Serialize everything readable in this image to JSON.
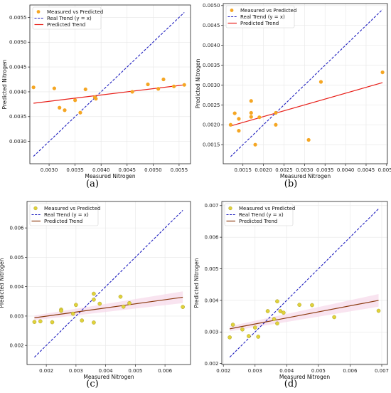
{
  "chart_data": [
    {
      "type": "scatter",
      "panel": "(a)",
      "xlabel": "Measured Nitrogen",
      "ylabel": "Predicted Nitrogen",
      "xlim": [
        0.00263,
        0.00572
      ],
      "ylim": [
        0.00255,
        0.00575
      ],
      "xticks": [
        "0.0030",
        "0.0035",
        "0.0040",
        "0.0045",
        "0.0050",
        "0.0055"
      ],
      "yticks": [
        "0.0030",
        "0.0035",
        "0.0040",
        "0.0045",
        "0.0050",
        "0.0055"
      ],
      "legend": [
        "Measured vs Predicted",
        "Real Trend (y = x)",
        "Predicted Trend"
      ],
      "legend_placement": "top-left",
      "grid": true,
      "points": [
        [
          0.0027,
          0.00409
        ],
        [
          0.0031,
          0.00407
        ],
        [
          0.0032,
          0.00368
        ],
        [
          0.0033,
          0.00363
        ],
        [
          0.0035,
          0.00383
        ],
        [
          0.0036,
          0.00358
        ],
        [
          0.0037,
          0.00405
        ],
        [
          0.00388,
          0.00389
        ],
        [
          0.0039,
          0.00386
        ],
        [
          0.0046,
          0.004
        ],
        [
          0.0049,
          0.00415
        ],
        [
          0.0051,
          0.00406
        ],
        [
          0.0052,
          0.00425
        ],
        [
          0.0054,
          0.00411
        ],
        [
          0.0056,
          0.00414
        ]
      ],
      "real_trend": [
        [
          0.0027,
          0.0027
        ],
        [
          0.0056,
          0.0056
        ]
      ],
      "predicted_trend": [
        [
          0.0027,
          0.00377
        ],
        [
          0.0056,
          0.00414
        ]
      ],
      "colors": {
        "points": "#f5a623",
        "real": "#1f1fbf",
        "pred": "#e8201a"
      },
      "point_edge": false,
      "caption": "(a)"
    },
    {
      "type": "scatter",
      "panel": "(b)",
      "xlabel": "Measured Nitrogen",
      "ylabel": "Predicted Nitrogen",
      "xlim": [
        0.00102,
        0.00502
      ],
      "ylim": [
        0.00102,
        0.00505
      ],
      "xticks": [
        "0.0015",
        "0.0020",
        "0.0025",
        "0.0030",
        "0.0035",
        "0.0040",
        "0.0045",
        "0.0050"
      ],
      "yticks": [
        "0.0015",
        "0.0020",
        "0.0025",
        "0.0030",
        "0.0035",
        "0.0040",
        "0.0045",
        "0.0050"
      ],
      "legend": [
        "Measured vs Predicted",
        "Real Trend (y = x)",
        "Predicted Trend"
      ],
      "legend_placement": "top-left",
      "grid": true,
      "points": [
        [
          0.0012,
          0.002
        ],
        [
          0.0013,
          0.00229
        ],
        [
          0.0014,
          0.00215
        ],
        [
          0.0014,
          0.00185
        ],
        [
          0.0017,
          0.0026
        ],
        [
          0.0017,
          0.0023
        ],
        [
          0.0017,
          0.0022
        ],
        [
          0.0018,
          0.0015
        ],
        [
          0.0019,
          0.00219
        ],
        [
          0.0023,
          0.0023
        ],
        [
          0.0023,
          0.002
        ],
        [
          0.0031,
          0.00162
        ],
        [
          0.0034,
          0.00308
        ],
        [
          0.0049,
          0.00332
        ]
      ],
      "real_trend": [
        [
          0.0012,
          0.0012
        ],
        [
          0.0049,
          0.0049
        ]
      ],
      "predicted_trend": [
        [
          0.0012,
          0.00197
        ],
        [
          0.0049,
          0.00306
        ]
      ],
      "colors": {
        "points": "#f5a623",
        "real": "#1f1fbf",
        "pred": "#e8201a"
      },
      "point_edge": false,
      "caption": "(b)"
    },
    {
      "type": "scatter",
      "panel": "(c)",
      "xlabel": "Measured Nitrogen",
      "ylabel": "Predicted Nitrogen",
      "xlim": [
        0.00135,
        0.00686
      ],
      "ylim": [
        0.00135,
        0.0069
      ],
      "xticks": [
        "0.002",
        "0.003",
        "0.004",
        "0.005",
        "0.006"
      ],
      "yticks": [
        "0.002",
        "0.003",
        "0.004",
        "0.005",
        "0.006"
      ],
      "legend": [
        "Measured vs Predicted",
        "Real Trend (y = x)",
        "Predicted Trend"
      ],
      "legend_placement": "top-left",
      "grid": true,
      "points": [
        [
          0.0016,
          0.0028
        ],
        [
          0.0018,
          0.00282
        ],
        [
          0.0022,
          0.00279
        ],
        [
          0.0025,
          0.00322
        ],
        [
          0.0025,
          0.00318
        ],
        [
          0.0029,
          0.00308
        ],
        [
          0.003,
          0.00338
        ],
        [
          0.0032,
          0.00285
        ],
        [
          0.0036,
          0.00376
        ],
        [
          0.0036,
          0.00356
        ],
        [
          0.0036,
          0.00278
        ],
        [
          0.0038,
          0.00342
        ],
        [
          0.0045,
          0.00366
        ],
        [
          0.0046,
          0.00332
        ],
        [
          0.0048,
          0.00344
        ],
        [
          0.0066,
          0.00331
        ]
      ],
      "real_trend": [
        [
          0.0016,
          0.0016
        ],
        [
          0.0066,
          0.0066
        ]
      ],
      "predicted_trend": [
        [
          0.0016,
          0.00294
        ],
        [
          0.0066,
          0.00364
        ]
      ],
      "band_upper": [
        [
          0.0016,
          0.00302
        ],
        [
          0.0066,
          0.00384
        ]
      ],
      "band_lower": [
        [
          0.0016,
          0.00286
        ],
        [
          0.0066,
          0.00344
        ]
      ],
      "colors": {
        "points": "#e0d23a",
        "real": "#1f1fbf",
        "pred": "#8b3a0f",
        "band": "#f7d8ea"
      },
      "point_edge": true,
      "caption": "(c)"
    },
    {
      "type": "scatter",
      "panel": "(d)",
      "xlabel": "Measured Nitrogen",
      "ylabel": "Predicted Nitrogen",
      "xlim": [
        0.00195,
        0.00718
      ],
      "ylim": [
        0.00197,
        0.00713
      ],
      "xticks": [
        "0.002",
        "0.003",
        "0.004",
        "0.005",
        "0.006",
        "0.007"
      ],
      "yticks": [
        "0.002",
        "0.003",
        "0.004",
        "0.005",
        "0.006",
        "0.007"
      ],
      "legend": [
        "Measured vs Predicted",
        "Real Trend (y = x)",
        "Predicted Trend"
      ],
      "legend_placement": "top-left",
      "grid": true,
      "points": [
        [
          0.0022,
          0.00283
        ],
        [
          0.0023,
          0.00323
        ],
        [
          0.0026,
          0.00308
        ],
        [
          0.0028,
          0.00287
        ],
        [
          0.003,
          0.00314
        ],
        [
          0.0031,
          0.00285
        ],
        [
          0.0034,
          0.00366
        ],
        [
          0.0036,
          0.00341
        ],
        [
          0.0037,
          0.00327
        ],
        [
          0.0037,
          0.00397
        ],
        [
          0.0038,
          0.00366
        ],
        [
          0.0039,
          0.00361
        ],
        [
          0.0044,
          0.00386
        ],
        [
          0.0048,
          0.00385
        ],
        [
          0.0055,
          0.00347
        ],
        [
          0.0069,
          0.00367
        ]
      ],
      "real_trend": [
        [
          0.0022,
          0.0022
        ],
        [
          0.0069,
          0.0069
        ]
      ],
      "predicted_trend": [
        [
          0.0022,
          0.0031
        ],
        [
          0.0069,
          0.004
        ]
      ],
      "band_upper": [
        [
          0.0022,
          0.00318
        ],
        [
          0.0069,
          0.0042
        ]
      ],
      "band_lower": [
        [
          0.0022,
          0.00302
        ],
        [
          0.0069,
          0.0038
        ]
      ],
      "colors": {
        "points": "#e0d23a",
        "real": "#1f1fbf",
        "pred": "#8b3a0f",
        "band": "#f7d8ea"
      },
      "point_edge": true,
      "caption": "(d)"
    }
  ]
}
